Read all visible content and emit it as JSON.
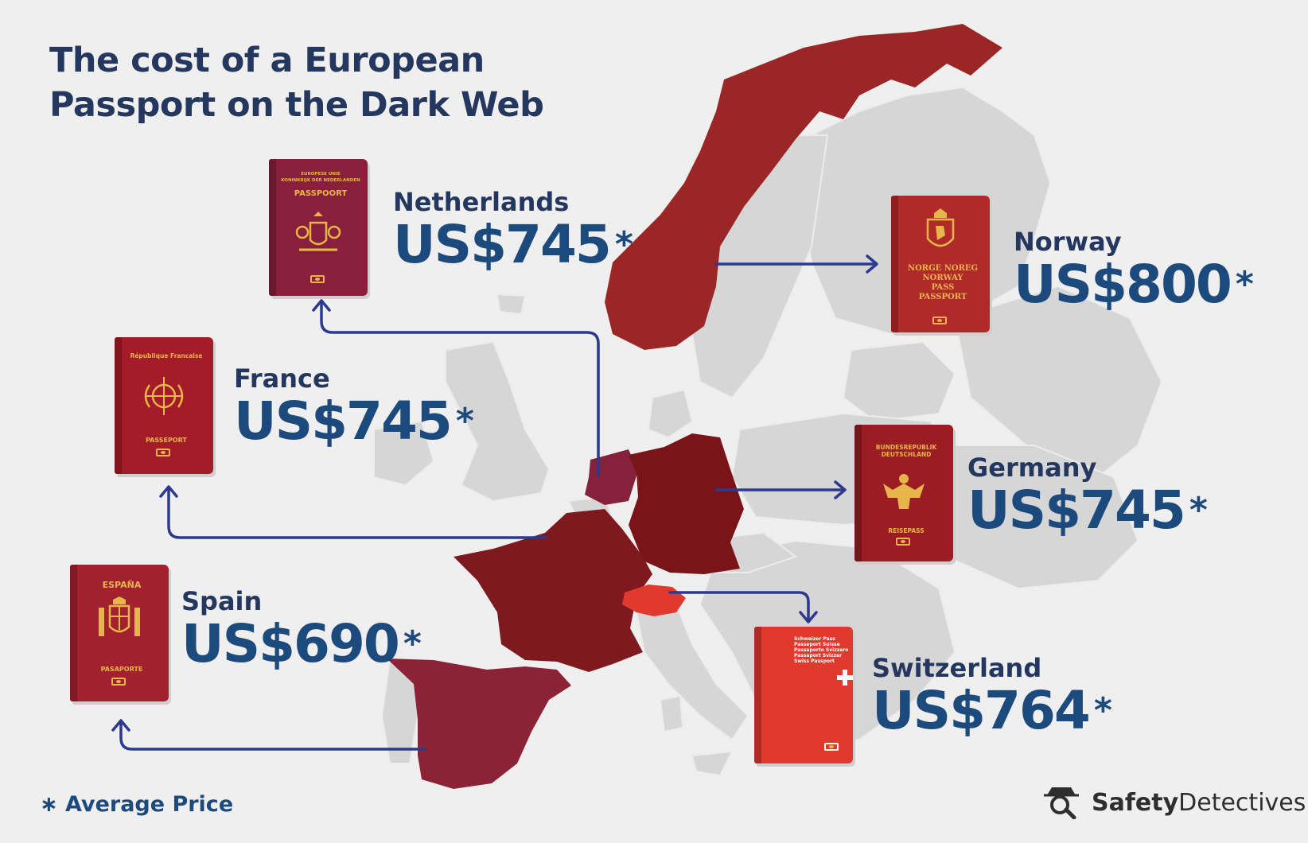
{
  "title": {
    "line1": "The cost of a European",
    "line2": "Passport on the Dark Web"
  },
  "colors": {
    "title": "#24375e",
    "price": "#1d4a7c",
    "map_land": "#d6d6d6",
    "background": "#efefef",
    "arrow": "#2b3a8e"
  },
  "entries": [
    {
      "id": "netherlands",
      "country": "Netherlands",
      "price": "US$745",
      "star": "*",
      "region_color": "#86213b",
      "passport": {
        "color": "#8a1f3b",
        "lines": [
          "EUROPESE UNIE",
          "KONINKRIJK DER NEDERLANDEN",
          "PASSPOORT"
        ],
        "bottom_text": "",
        "icon": "dutch-crest-icon"
      }
    },
    {
      "id": "norway",
      "country": "Norway",
      "price": "US$800",
      "star": "*",
      "region_color": "#9a2626",
      "passport": {
        "color": "#b12a2a",
        "lines": [],
        "bottom_text": "NORGE NOREG\nNORWAY\nPASS\nPASSPORT",
        "icon": "norway-lion-icon"
      }
    },
    {
      "id": "france",
      "country": "France",
      "price": "US$745",
      "star": "*",
      "region_color": "#7e1a1f",
      "passport": {
        "color": "#a41c28",
        "lines": [
          "République Francaise"
        ],
        "bottom_text": "PASSEPORT",
        "icon": "french-emblem-icon"
      }
    },
    {
      "id": "germany",
      "country": "Germany",
      "price": "US$745",
      "star": "*",
      "region_color": "#7a1419",
      "passport": {
        "color": "#9b1c22",
        "lines": [
          "BUNDESREPUBLIK",
          "DEUTSCHLAND"
        ],
        "bottom_text": "REISEPASS",
        "icon": "eagle-icon"
      }
    },
    {
      "id": "spain",
      "country": "Spain",
      "price": "US$690",
      "star": "*",
      "region_color": "#8b2236",
      "passport": {
        "color": "#a3202f",
        "lines": [
          "ESPAÑA"
        ],
        "bottom_text": "PASAPORTE",
        "icon": "spanish-crest-icon"
      }
    },
    {
      "id": "switzerland",
      "country": "Switzerland",
      "price": "US$764",
      "star": "*",
      "region_color": "#e0392e",
      "passport": {
        "color": "#e0392e",
        "lines": [
          "Schweizer Pass",
          "Passeport Suisse",
          "Passaporto Svizzero",
          "Passaport Svizzer",
          "Swiss Passport"
        ],
        "bottom_text": "",
        "icon": "swiss-cross-icon"
      }
    }
  ],
  "footnote": {
    "star": "∗",
    "text": "Average Price"
  },
  "logo": {
    "bold": "Safety",
    "regular": "Detectives",
    "icon": "detective-icon"
  }
}
